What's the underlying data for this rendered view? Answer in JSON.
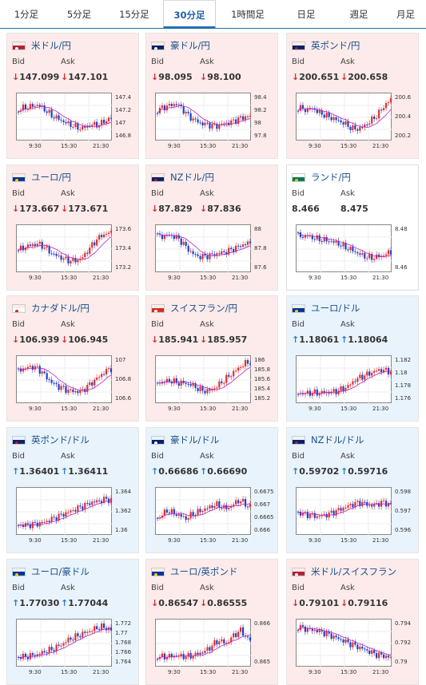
{
  "tabs": [
    {
      "label": "1分足",
      "active": false
    },
    {
      "label": "5分足",
      "active": false
    },
    {
      "label": "15分足",
      "active": false
    },
    {
      "label": "30分足",
      "active": true
    },
    {
      "label": "1時間足",
      "active": false
    },
    {
      "label": "日足",
      "active": false
    },
    {
      "label": "週足",
      "active": false
    },
    {
      "label": "月足",
      "active": false
    }
  ],
  "labels": {
    "bid": "Bid",
    "ask": "Ask"
  },
  "colors": {
    "down_card": "#fcebea",
    "up_card": "#e9f3fb",
    "bull": "#e03030",
    "bear": "#1f3fc8",
    "ma": "#c020c0",
    "ma2": "#3aa6e0"
  },
  "pairs": [
    {
      "name": "米ドル/円",
      "dir": "down",
      "flag": "us-jp",
      "bid": "147.099",
      "ask": "147.101",
      "ticks": [
        "147.4",
        "147.2",
        "147",
        "146.8"
      ],
      "x": [
        "9:30",
        "15:30",
        "21:30"
      ],
      "ohlc_trend": [
        0.35,
        0.3,
        0.28,
        0.25,
        0.22,
        0.3,
        0.4,
        0.5,
        0.55,
        0.62,
        0.68,
        0.72,
        0.78,
        0.8,
        0.75,
        0.7,
        0.72,
        0.68,
        0.6,
        0.55
      ]
    },
    {
      "name": "豪ドル/円",
      "dir": "down",
      "flag": "au-jp",
      "bid": "98.095",
      "ask": "98.100",
      "ticks": [
        "98.4",
        "98.2",
        "98",
        "97.8"
      ],
      "x": [
        "9:30",
        "15:30",
        "21:30"
      ],
      "ohlc_trend": [
        0.35,
        0.3,
        0.25,
        0.22,
        0.2,
        0.3,
        0.45,
        0.55,
        0.62,
        0.68,
        0.7,
        0.72,
        0.75,
        0.7,
        0.68,
        0.65,
        0.6,
        0.55,
        0.52,
        0.5
      ]
    },
    {
      "name": "英ポンド/円",
      "dir": "down",
      "flag": "gb-jp",
      "bid": "200.651",
      "ask": "200.658",
      "ticks": [
        "200.6",
        "200.4",
        "200.2"
      ],
      "x": [
        "9:30",
        "15:30",
        "21:30"
      ],
      "ohlc_trend": [
        0.3,
        0.32,
        0.35,
        0.3,
        0.4,
        0.45,
        0.5,
        0.55,
        0.6,
        0.65,
        0.72,
        0.8,
        0.82,
        0.78,
        0.7,
        0.6,
        0.5,
        0.35,
        0.2,
        0.1
      ]
    },
    {
      "name": "ユーロ/円",
      "dir": "down",
      "flag": "eu-jp",
      "bid": "173.667",
      "ask": "173.671",
      "ticks": [
        "173.6",
        "173.4",
        "173.2"
      ],
      "x": [
        "9:30",
        "15:30",
        "21:30"
      ],
      "ohlc_trend": [
        0.55,
        0.5,
        0.45,
        0.42,
        0.4,
        0.45,
        0.55,
        0.65,
        0.7,
        0.75,
        0.8,
        0.82,
        0.8,
        0.75,
        0.6,
        0.45,
        0.3,
        0.2,
        0.15,
        0.12
      ]
    },
    {
      "name": "NZドル/円",
      "dir": "down",
      "flag": "nz-jp",
      "bid": "87.829",
      "ask": "87.836",
      "ticks": [
        "88",
        "87.8",
        "87.6"
      ],
      "x": [
        "9:30",
        "15:30",
        "21:30"
      ],
      "ohlc_trend": [
        0.2,
        0.22,
        0.18,
        0.2,
        0.25,
        0.35,
        0.5,
        0.62,
        0.7,
        0.72,
        0.7,
        0.68,
        0.65,
        0.62,
        0.6,
        0.55,
        0.5,
        0.45,
        0.4,
        0.38
      ]
    },
    {
      "name": "ランド/円",
      "dir": "neutral",
      "flag": "za-jp",
      "bid": "8.466",
      "ask": "8.475",
      "ticks": [
        "8.48",
        "8.46"
      ],
      "x": [
        "9:30",
        "15:30",
        "21:30"
      ],
      "ohlc_trend": [
        0.2,
        0.22,
        0.2,
        0.25,
        0.28,
        0.3,
        0.32,
        0.35,
        0.38,
        0.45,
        0.5,
        0.55,
        0.62,
        0.68,
        0.72,
        0.75,
        0.72,
        0.7,
        0.65,
        0.6
      ]
    },
    {
      "name": "カナダドル/円",
      "dir": "down",
      "flag": "ca-jp",
      "bid": "106.939",
      "ask": "106.945",
      "ticks": [
        "107",
        "106.8",
        "106.6"
      ],
      "x": [
        "9:30",
        "15:30",
        "21:30"
      ],
      "ohlc_trend": [
        0.3,
        0.25,
        0.22,
        0.2,
        0.25,
        0.35,
        0.5,
        0.6,
        0.68,
        0.72,
        0.78,
        0.8,
        0.82,
        0.8,
        0.7,
        0.6,
        0.5,
        0.4,
        0.3,
        0.25
      ]
    },
    {
      "name": "スイスフラン/円",
      "dir": "down",
      "flag": "ch-jp",
      "bid": "185.941",
      "ask": "185.957",
      "ticks": [
        "186",
        "185.8",
        "185.6",
        "185.4",
        "185.2"
      ],
      "x": [
        "9:30",
        "15:30",
        "21:30"
      ],
      "ohlc_trend": [
        0.6,
        0.58,
        0.55,
        0.55,
        0.6,
        0.6,
        0.62,
        0.65,
        0.72,
        0.78,
        0.8,
        0.78,
        0.7,
        0.6,
        0.5,
        0.4,
        0.3,
        0.2,
        0.12,
        0.08
      ]
    },
    {
      "name": "ユーロ/ドル",
      "dir": "up",
      "flag": "eu-us",
      "bid": "1.18061",
      "ask": "1.18064",
      "ticks": [
        "1.182",
        "1.18",
        "1.178",
        "1.176"
      ],
      "x": [
        "9:30",
        "15:30",
        "21:30"
      ],
      "ohlc_trend": [
        0.85,
        0.86,
        0.85,
        0.84,
        0.85,
        0.84,
        0.83,
        0.82,
        0.8,
        0.75,
        0.7,
        0.6,
        0.5,
        0.45,
        0.4,
        0.35,
        0.3,
        0.28,
        0.3,
        0.32
      ]
    },
    {
      "name": "英ポンド/ドル",
      "dir": "up",
      "flag": "gb-us",
      "bid": "1.36401",
      "ask": "1.36411",
      "ticks": [
        "1.364",
        "1.362",
        "1.36"
      ],
      "x": [
        "9:30",
        "15:30",
        "21:30"
      ],
      "ohlc_trend": [
        0.85,
        0.86,
        0.85,
        0.84,
        0.82,
        0.8,
        0.75,
        0.7,
        0.65,
        0.6,
        0.55,
        0.5,
        0.45,
        0.4,
        0.35,
        0.3,
        0.28,
        0.25,
        0.22,
        0.25
      ]
    },
    {
      "name": "豪ドル/ドル",
      "dir": "up",
      "flag": "au-us",
      "bid": "0.66686",
      "ask": "0.66690",
      "ticks": [
        "0.6675",
        "0.667",
        "0.6665",
        "0.666"
      ],
      "x": [
        "9:30",
        "15:30",
        "21:30"
      ],
      "ohlc_trend": [
        0.7,
        0.6,
        0.5,
        0.55,
        0.6,
        0.65,
        0.7,
        0.6,
        0.55,
        0.5,
        0.45,
        0.4,
        0.35,
        0.4,
        0.45,
        0.4,
        0.3,
        0.25,
        0.35,
        0.4
      ]
    },
    {
      "name": "NZドル/ドル",
      "dir": "up",
      "flag": "nz-us",
      "bid": "0.59702",
      "ask": "0.59716",
      "ticks": [
        "0.598",
        "0.597",
        "0.596"
      ],
      "x": [
        "9:30",
        "15:30",
        "21:30"
      ],
      "ohlc_trend": [
        0.55,
        0.58,
        0.6,
        0.62,
        0.65,
        0.62,
        0.6,
        0.55,
        0.5,
        0.45,
        0.4,
        0.35,
        0.32,
        0.3,
        0.35,
        0.38,
        0.35,
        0.3,
        0.32,
        0.35
      ]
    },
    {
      "name": "ユーロ/豪ドル",
      "dir": "up",
      "flag": "eu-au",
      "bid": "1.77030",
      "ask": "1.77044",
      "ticks": [
        "1.772",
        "1.77",
        "1.768",
        "1.766",
        "1.764"
      ],
      "x": [
        "9:30",
        "15:30",
        "21:30"
      ],
      "ohlc_trend": [
        0.85,
        0.86,
        0.84,
        0.82,
        0.8,
        0.75,
        0.7,
        0.68,
        0.6,
        0.55,
        0.45,
        0.4,
        0.35,
        0.3,
        0.25,
        0.2,
        0.15,
        0.12,
        0.15,
        0.2
      ]
    },
    {
      "name": "ユーロ/英ポンド",
      "dir": "down",
      "flag": "eu-gb",
      "bid": "0.86547",
      "ask": "0.86555",
      "ticks": [
        "0.866",
        "0.865"
      ],
      "x": [
        "9:30",
        "15:30",
        "21:30"
      ],
      "ohlc_trend": [
        0.85,
        0.86,
        0.85,
        0.84,
        0.82,
        0.84,
        0.85,
        0.83,
        0.8,
        0.75,
        0.7,
        0.6,
        0.5,
        0.45,
        0.55,
        0.4,
        0.3,
        0.2,
        0.35,
        0.45
      ]
    },
    {
      "name": "米ドル/スイスフラン",
      "dir": "down",
      "flag": "us-ch",
      "bid": "0.79101",
      "ask": "0.79116",
      "ticks": [
        "0.794",
        "0.792",
        "0.79"
      ],
      "x": [
        "9:30",
        "15:30",
        "21:30"
      ],
      "ohlc_trend": [
        0.12,
        0.15,
        0.18,
        0.2,
        0.22,
        0.25,
        0.3,
        0.35,
        0.4,
        0.45,
        0.5,
        0.55,
        0.6,
        0.65,
        0.7,
        0.75,
        0.8,
        0.82,
        0.85,
        0.88
      ]
    }
  ]
}
